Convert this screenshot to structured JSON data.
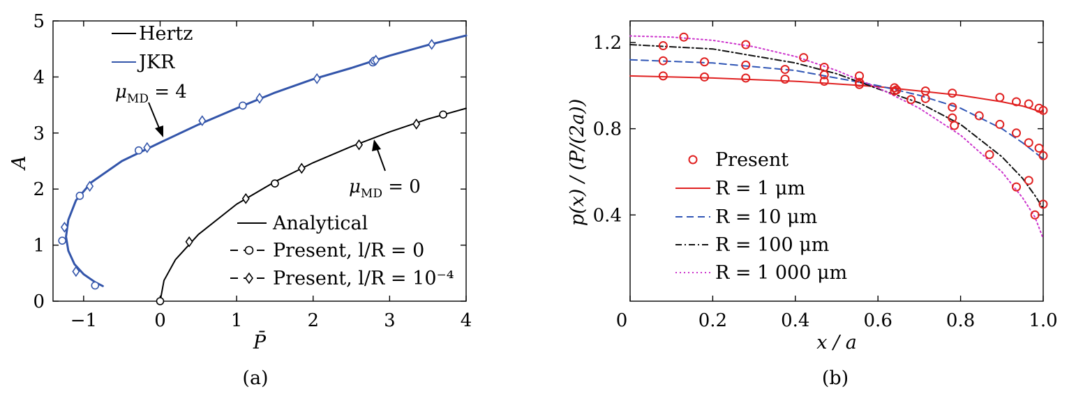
{
  "chart_data": [
    {
      "panel": "(a)",
      "type": "line",
      "caption": "(a)",
      "xlabel": "P̄",
      "ylabel": "A",
      "xlim": [
        -1.4,
        4
      ],
      "ylim": [
        0,
        5
      ],
      "xticks": [
        -1,
        0,
        1,
        2,
        3,
        4
      ],
      "yticks": [
        0,
        1,
        2,
        3,
        4,
        5
      ],
      "ytick_labels": [
        "0",
        "1",
        "2",
        "3",
        "4",
        "5"
      ],
      "xtick_labels": [
        "−1",
        "0",
        "1",
        "2",
        "3",
        "4"
      ],
      "legend_top": [
        "Hertz",
        "JKR"
      ],
      "legend_bottom": [
        "Analytical",
        "Present, l/R = 0",
        "Present, l/R = 10⁻⁴"
      ],
      "annotations": [
        {
          "text": "μMD = 4",
          "main": "μ",
          "sub": "MD",
          "rest": " = 4"
        },
        {
          "text": "μMD = 0",
          "main": "μ",
          "sub": "MD",
          "rest": " = 0"
        }
      ],
      "series": [
        {
          "name": "Hertz",
          "color": "#000000",
          "x": [
            0,
            0.05,
            0.2,
            0.5,
            1,
            1.5,
            2,
            2.5,
            3,
            3.5,
            4
          ],
          "y": [
            0,
            0.37,
            0.74,
            1.19,
            1.73,
            2.13,
            2.47,
            2.76,
            3.02,
            3.25,
            3.44
          ]
        },
        {
          "name": "JKR",
          "color": "#3355aa",
          "x": [
            -0.75,
            -0.85,
            -1.0,
            -1.12,
            -1.2,
            -1.23,
            -1.2,
            -1.1,
            -0.9,
            -0.5,
            0,
            0.5,
            1,
            1.5,
            2,
            2.5,
            3,
            3.5,
            4
          ],
          "y": [
            0.27,
            0.34,
            0.48,
            0.66,
            0.9,
            1.15,
            1.45,
            1.8,
            2.12,
            2.5,
            2.83,
            3.15,
            3.44,
            3.72,
            3.96,
            4.16,
            4.38,
            4.57,
            4.74
          ]
        }
      ],
      "markers": [
        {
          "series": "Present, l/R = 0",
          "symbol": "circle",
          "color": "#000000",
          "x": [
            0,
            1.5,
            3.7
          ],
          "y": [
            0,
            2.1,
            3.33
          ]
        },
        {
          "series": "Present, l/R = 10⁻⁴",
          "symbol": "diamond",
          "color": "#000000",
          "x": [
            0.38,
            1.12,
            1.85,
            2.6,
            3.35
          ],
          "y": [
            1.06,
            1.83,
            2.37,
            2.79,
            3.16
          ]
        },
        {
          "series": "Present, l/R = 0 (JKR)",
          "symbol": "circle",
          "color": "#3355aa",
          "x": [
            -1.28,
            -1.05,
            -0.85,
            -0.28,
            1.08,
            2.78,
            2.8
          ],
          "y": [
            1.08,
            1.88,
            0.28,
            2.69,
            3.49,
            4.26,
            4.29
          ]
        },
        {
          "series": "Present, l/R = 10⁻⁴ (JKR)",
          "symbol": "diamond",
          "color": "#3355aa",
          "x": [
            -1.25,
            -1.1,
            -0.92,
            -0.17,
            0.55,
            1.3,
            2.05,
            2.82,
            3.55
          ],
          "y": [
            1.32,
            0.53,
            2.05,
            2.74,
            3.22,
            3.62,
            3.97,
            4.3,
            4.58
          ]
        }
      ]
    },
    {
      "panel": "(b)",
      "type": "line",
      "caption": "(b)",
      "xlabel": "x / a",
      "ylabel": "p(x) / (P/(2a))",
      "xlim": [
        0,
        1.0
      ],
      "ylim": [
        0,
        1.3
      ],
      "xticks": [
        0,
        0.2,
        0.4,
        0.6,
        0.8,
        1.0
      ],
      "xtick_labels": [
        "0",
        "0.2",
        "0.4",
        "0.6",
        "0.8",
        "1.0"
      ],
      "yticks": [
        0.4,
        0.8,
        1.2
      ],
      "ytick_labels": [
        "0.4",
        "0.8",
        "1.2"
      ],
      "legend": [
        "Present",
        "R = 1 μm",
        "R = 10 μm",
        "R = 100 μm",
        "R = 1 000 μm"
      ],
      "series": [
        {
          "name": "R = 1 μm",
          "color": "#e02020",
          "dash": "solid",
          "x": [
            0,
            0.2,
            0.4,
            0.6,
            0.7,
            0.8,
            0.9,
            0.95,
            1.0
          ],
          "y": [
            1.045,
            1.035,
            1.02,
            0.995,
            0.975,
            0.955,
            0.925,
            0.905,
            0.875
          ]
        },
        {
          "name": "R = 10 μm",
          "color": "#2f55b5",
          "dash": "10,6",
          "x": [
            0,
            0.2,
            0.4,
            0.6,
            0.7,
            0.8,
            0.9,
            0.95,
            1.0
          ],
          "y": [
            1.12,
            1.105,
            1.07,
            1.0,
            0.955,
            0.895,
            0.8,
            0.735,
            0.66
          ]
        },
        {
          "name": "R = 100 μm",
          "color": "#111111",
          "dash": "9,4,2,4",
          "x": [
            0,
            0.2,
            0.4,
            0.5,
            0.6,
            0.7,
            0.8,
            0.9,
            0.95,
            0.98,
            1.0
          ],
          "y": [
            1.19,
            1.17,
            1.105,
            1.055,
            0.985,
            0.92,
            0.82,
            0.67,
            0.57,
            0.49,
            0.43
          ]
        },
        {
          "name": "R = 1 000 μm",
          "color": "#cc33cc",
          "dash": "2,4",
          "x": [
            0,
            0.1,
            0.2,
            0.3,
            0.4,
            0.5,
            0.6,
            0.7,
            0.8,
            0.9,
            0.95,
            0.98,
            1.0
          ],
          "y": [
            1.23,
            1.225,
            1.21,
            1.18,
            1.135,
            1.07,
            0.99,
            0.895,
            0.77,
            0.6,
            0.48,
            0.39,
            0.29
          ]
        }
      ],
      "markers": [
        {
          "series": "Present",
          "symbol": "circle",
          "color": "#e02020",
          "x": [
            0.08,
            0.13,
            0.08,
            0.18,
            0.28,
            0.08,
            0.18,
            0.28,
            0.375,
            0.42,
            0.47,
            0.28,
            0.375,
            0.47,
            0.555,
            0.47,
            0.555,
            0.555,
            0.64,
            0.645,
            0.64,
            0.68,
            0.715,
            0.715,
            0.78,
            0.78,
            0.78,
            0.785,
            0.845,
            0.87,
            0.895,
            0.895,
            0.935,
            0.935,
            0.935,
            0.965,
            0.965,
            0.965,
            0.98,
            0.99,
            0.99,
            1.0,
            1.0,
            1.0
          ],
          "y": [
            1.185,
            1.225,
            1.115,
            1.11,
            1.095,
            1.045,
            1.04,
            1.035,
            1.075,
            1.13,
            1.085,
            1.19,
            1.03,
            1.02,
            1.045,
            1.05,
            1.005,
            1.015,
            0.99,
            0.98,
            0.975,
            0.935,
            0.975,
            0.94,
            0.965,
            0.9,
            0.85,
            0.815,
            0.86,
            0.68,
            0.945,
            0.82,
            0.925,
            0.78,
            0.53,
            0.915,
            0.735,
            0.56,
            0.4,
            0.895,
            0.71,
            0.885,
            0.675,
            0.45
          ]
        }
      ]
    }
  ]
}
